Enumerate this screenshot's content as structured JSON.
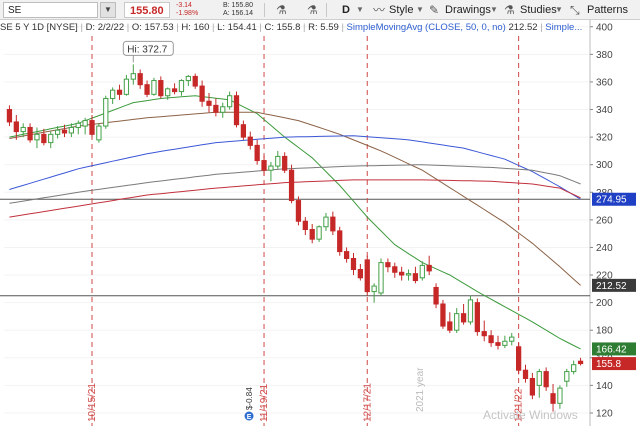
{
  "toolbar": {
    "symbol": "SE",
    "last_price": "155.80",
    "change": "-3.14",
    "change_pct": "-1.98%",
    "bid": "B: 155.80",
    "ask": "A: 156.14",
    "period": "D",
    "style_label": "Style",
    "drawings_label": "Drawings",
    "studies_label": "Studies",
    "patterns_label": "Patterns"
  },
  "infobar": {
    "symbol_desc": "SE 5 Y 1D [NYSE]",
    "date": "D: 2/2/22",
    "open": "O: 157.53",
    "high": "H: 160",
    "low": "L: 154.41",
    "close": "C: 155.8",
    "range": "R: 5.59",
    "study": "SimpleMovingAvg (CLOSE, 50, 0, no)",
    "study_value": "212.52",
    "study_more": "Simple..."
  },
  "colors": {
    "up_candle": "#43a047",
    "down_candle": "#c62828",
    "sma_20": "#3c9a3c",
    "sma_50": "#8c6246",
    "sma_100": "#3b57d6",
    "sma_200_red": "#c2303d",
    "sma_200_gray": "#7a7a7a",
    "date_marker": "#d04848",
    "price_tag": "#c62828",
    "sma20_tag": "#2e7d32",
    "sma100_tag": "#1f3fc4",
    "sma50_tag": "#3a3a3a"
  },
  "chart_data": {
    "type": "candlestick",
    "symbol": "SE",
    "period": "5 Y 1D",
    "ylim": [
      112,
      402
    ],
    "y_ticks": [
      120,
      140,
      160,
      180,
      200,
      220,
      240,
      260,
      280,
      300,
      320,
      340,
      360,
      380,
      400
    ],
    "candles": [
      {
        "o": 340,
        "h": 343,
        "l": 328,
        "c": 331
      },
      {
        "o": 331,
        "h": 336,
        "l": 318,
        "c": 324
      },
      {
        "o": 324,
        "h": 330,
        "l": 320,
        "c": 327
      },
      {
        "o": 327,
        "h": 330,
        "l": 316,
        "c": 318
      },
      {
        "o": 318,
        "h": 327,
        "l": 312,
        "c": 322
      },
      {
        "o": 322,
        "h": 326,
        "l": 314,
        "c": 316
      },
      {
        "o": 316,
        "h": 324,
        "l": 312,
        "c": 322
      },
      {
        "o": 322,
        "h": 328,
        "l": 319,
        "c": 325
      },
      {
        "o": 325,
        "h": 329,
        "l": 320,
        "c": 323
      },
      {
        "o": 323,
        "h": 330,
        "l": 320,
        "c": 327
      },
      {
        "o": 327,
        "h": 332,
        "l": 322,
        "c": 330
      },
      {
        "o": 328,
        "h": 334,
        "l": 322,
        "c": 332
      },
      {
        "o": 332,
        "h": 336,
        "l": 320,
        "c": 322
      },
      {
        "o": 318,
        "h": 330,
        "l": 316,
        "c": 328
      },
      {
        "o": 328,
        "h": 350,
        "l": 326,
        "c": 348
      },
      {
        "o": 348,
        "h": 356,
        "l": 344,
        "c": 354
      },
      {
        "o": 354,
        "h": 358,
        "l": 347,
        "c": 351
      },
      {
        "o": 351,
        "h": 365,
        "l": 350,
        "c": 362
      },
      {
        "o": 362,
        "h": 372.7,
        "l": 358,
        "c": 366
      },
      {
        "o": 366,
        "h": 369,
        "l": 355,
        "c": 358
      },
      {
        "o": 358,
        "h": 361,
        "l": 349,
        "c": 351
      },
      {
        "o": 351,
        "h": 363,
        "l": 350,
        "c": 361
      },
      {
        "o": 361,
        "h": 364,
        "l": 348,
        "c": 350
      },
      {
        "o": 350,
        "h": 356,
        "l": 347,
        "c": 355
      },
      {
        "o": 355,
        "h": 359,
        "l": 351,
        "c": 353
      },
      {
        "o": 353,
        "h": 362,
        "l": 350,
        "c": 361
      },
      {
        "o": 361,
        "h": 365,
        "l": 357,
        "c": 364
      },
      {
        "o": 364,
        "h": 366,
        "l": 355,
        "c": 357
      },
      {
        "o": 357,
        "h": 361,
        "l": 342,
        "c": 346
      },
      {
        "o": 346,
        "h": 352,
        "l": 338,
        "c": 343
      },
      {
        "o": 343,
        "h": 348,
        "l": 335,
        "c": 338
      },
      {
        "o": 338,
        "h": 345,
        "l": 334,
        "c": 342
      },
      {
        "o": 342,
        "h": 353,
        "l": 340,
        "c": 350
      },
      {
        "o": 350,
        "h": 353,
        "l": 327,
        "c": 329
      },
      {
        "o": 329,
        "h": 332,
        "l": 318,
        "c": 320
      },
      {
        "o": 320,
        "h": 324,
        "l": 311,
        "c": 314
      },
      {
        "o": 314,
        "h": 318,
        "l": 300,
        "c": 303
      },
      {
        "o": 303,
        "h": 307,
        "l": 292,
        "c": 296
      },
      {
        "o": 296,
        "h": 302,
        "l": 288,
        "c": 299
      },
      {
        "o": 299,
        "h": 310,
        "l": 297,
        "c": 306
      },
      {
        "o": 306,
        "h": 309,
        "l": 294,
        "c": 296
      },
      {
        "o": 296,
        "h": 300,
        "l": 272,
        "c": 274
      },
      {
        "o": 274,
        "h": 277,
        "l": 256,
        "c": 259
      },
      {
        "o": 259,
        "h": 262,
        "l": 249,
        "c": 253
      },
      {
        "o": 253,
        "h": 257,
        "l": 243,
        "c": 246
      },
      {
        "o": 246,
        "h": 256,
        "l": 244,
        "c": 255
      },
      {
        "o": 255,
        "h": 265,
        "l": 252,
        "c": 262
      },
      {
        "o": 262,
        "h": 266,
        "l": 249,
        "c": 252
      },
      {
        "o": 252,
        "h": 255,
        "l": 234,
        "c": 237
      },
      {
        "o": 237,
        "h": 240,
        "l": 229,
        "c": 232
      },
      {
        "o": 232,
        "h": 236,
        "l": 220,
        "c": 224
      },
      {
        "o": 224,
        "h": 228,
        "l": 216,
        "c": 218
      },
      {
        "o": 231,
        "h": 234,
        "l": 205,
        "c": 208
      },
      {
        "o": 208,
        "h": 214,
        "l": 200,
        "c": 212
      },
      {
        "o": 207,
        "h": 232,
        "l": 205,
        "c": 229
      },
      {
        "o": 229,
        "h": 232,
        "l": 222,
        "c": 226
      },
      {
        "o": 226,
        "h": 229,
        "l": 218,
        "c": 222
      },
      {
        "o": 222,
        "h": 226,
        "l": 216,
        "c": 220
      },
      {
        "o": 220,
        "h": 224,
        "l": 216,
        "c": 221
      },
      {
        "o": 221,
        "h": 226,
        "l": 214,
        "c": 216
      },
      {
        "o": 218,
        "h": 230,
        "l": 216,
        "c": 227
      },
      {
        "o": 227,
        "h": 234,
        "l": 220,
        "c": 223
      },
      {
        "o": 211,
        "h": 214,
        "l": 196,
        "c": 199
      },
      {
        "o": 199,
        "h": 202,
        "l": 181,
        "c": 183
      },
      {
        "o": 186,
        "h": 193,
        "l": 178,
        "c": 180
      },
      {
        "o": 180,
        "h": 196,
        "l": 178,
        "c": 192
      },
      {
        "o": 192,
        "h": 199,
        "l": 184,
        "c": 186
      },
      {
        "o": 186,
        "h": 205,
        "l": 184,
        "c": 202
      },
      {
        "o": 200,
        "h": 203,
        "l": 176,
        "c": 179
      },
      {
        "o": 179,
        "h": 187,
        "l": 172,
        "c": 176
      },
      {
        "o": 176,
        "h": 180,
        "l": 168,
        "c": 171
      },
      {
        "o": 171,
        "h": 176,
        "l": 166,
        "c": 169
      },
      {
        "o": 169,
        "h": 176,
        "l": 167,
        "c": 172
      },
      {
        "o": 172,
        "h": 178,
        "l": 169,
        "c": 175
      },
      {
        "o": 168,
        "h": 171,
        "l": 148,
        "c": 151
      },
      {
        "o": 151,
        "h": 155,
        "l": 142,
        "c": 145
      },
      {
        "o": 145,
        "h": 149,
        "l": 130,
        "c": 133
      },
      {
        "o": 140,
        "h": 152,
        "l": 131,
        "c": 150
      },
      {
        "o": 150,
        "h": 153,
        "l": 136,
        "c": 139
      },
      {
        "o": 134,
        "h": 141,
        "l": 121,
        "c": 127
      },
      {
        "o": 127,
        "h": 140,
        "l": 123,
        "c": 138
      },
      {
        "o": 143,
        "h": 152,
        "l": 139,
        "c": 150
      },
      {
        "o": 150,
        "h": 158,
        "l": 148,
        "c": 155
      },
      {
        "o": 157.53,
        "h": 160,
        "l": 154.41,
        "c": 155.8
      }
    ],
    "moving_averages": [
      {
        "key": "sma_20",
        "anchors": [
          [
            0,
            320
          ],
          [
            10,
            330
          ],
          [
            18,
            345
          ],
          [
            22,
            348
          ],
          [
            27,
            350
          ],
          [
            32,
            347
          ],
          [
            36,
            337
          ],
          [
            40,
            320
          ],
          [
            44,
            305
          ],
          [
            48,
            285
          ],
          [
            52,
            262
          ],
          [
            56,
            242
          ],
          [
            60,
            229
          ],
          [
            64,
            220
          ],
          [
            68,
            208
          ],
          [
            72,
            197
          ],
          [
            76,
            186
          ],
          [
            80,
            174
          ],
          [
            83,
            166.42
          ]
        ]
      },
      {
        "key": "sma_50",
        "anchors": [
          [
            0,
            319
          ],
          [
            10,
            328
          ],
          [
            20,
            334
          ],
          [
            30,
            338
          ],
          [
            36,
            338
          ],
          [
            42,
            332
          ],
          [
            48,
            322
          ],
          [
            54,
            310
          ],
          [
            60,
            296
          ],
          [
            66,
            277
          ],
          [
            72,
            258
          ],
          [
            76,
            243
          ],
          [
            80,
            226
          ],
          [
            83,
            212.52
          ]
        ]
      },
      {
        "key": "sma_100",
        "anchors": [
          [
            0,
            282
          ],
          [
            10,
            297
          ],
          [
            20,
            308
          ],
          [
            30,
            316
          ],
          [
            40,
            320
          ],
          [
            50,
            321
          ],
          [
            58,
            318
          ],
          [
            66,
            312
          ],
          [
            72,
            304
          ],
          [
            76,
            295
          ],
          [
            80,
            284
          ],
          [
            83,
            274.95
          ]
        ]
      },
      {
        "key": "sma_200_red",
        "anchors": [
          [
            0,
            262
          ],
          [
            10,
            270
          ],
          [
            20,
            278
          ],
          [
            30,
            283
          ],
          [
            40,
            287
          ],
          [
            50,
            289
          ],
          [
            60,
            289
          ],
          [
            70,
            288
          ],
          [
            76,
            286
          ],
          [
            80,
            283
          ],
          [
            83,
            276
          ]
        ]
      },
      {
        "key": "sma_200_gray",
        "anchors": [
          [
            0,
            272
          ],
          [
            10,
            280
          ],
          [
            20,
            287
          ],
          [
            30,
            293
          ],
          [
            40,
            297
          ],
          [
            50,
            299
          ],
          [
            60,
            300
          ],
          [
            70,
            298
          ],
          [
            76,
            296
          ],
          [
            80,
            292
          ],
          [
            83,
            286
          ]
        ]
      }
    ],
    "horizontal_lines": [
      274.95,
      205
    ],
    "date_markers": [
      {
        "label": "10/15/21",
        "index": 12
      },
      {
        "label": "11/19/21",
        "index": 37
      },
      {
        "label": "12/17/21",
        "index": 52
      },
      {
        "label": "1/21/22",
        "index": 74
      }
    ],
    "year_marker": {
      "label": "2021 year",
      "index": 61
    },
    "high_label": {
      "text": "Hi: 372.7",
      "index": 18
    },
    "event_text": "$-0.84",
    "event_icon": "earnings-icon",
    "price_tags": [
      {
        "key": "sma100_tag",
        "text": "274.95",
        "value": 274.95
      },
      {
        "key": "sma50_tag",
        "text": "212.52",
        "value": 212.52
      },
      {
        "key": "sma20_tag",
        "text": "166.42",
        "value": 166.42
      },
      {
        "key": "price_tag",
        "text": "155.8",
        "value": 155.8
      }
    ],
    "watermark": "Activate Windows"
  }
}
